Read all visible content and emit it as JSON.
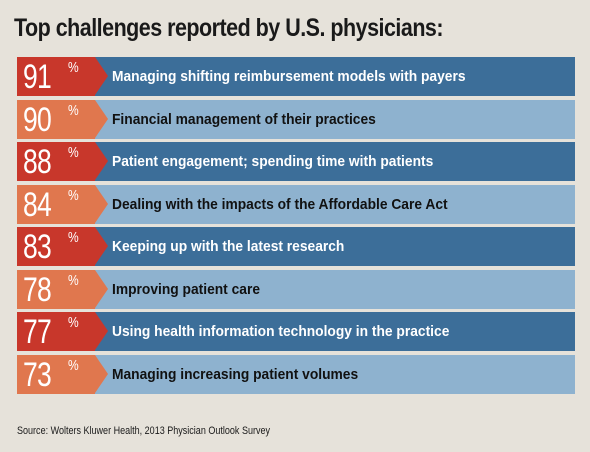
{
  "header": {
    "title": "Top challenges reported by U.S. physicians:"
  },
  "footer": {
    "source": "Source: Wolters Kluwer Health, 2013 Physician Outlook Survey"
  },
  "colors": {
    "odd_pct": "#c8372b",
    "even_pct": "#e0774e",
    "odd_bar": "#3c6e99",
    "even_bar": "#8eb2cf",
    "odd_text": "#ffffff",
    "even_text": "#111111"
  },
  "chart_data": {
    "type": "table",
    "title": "Top challenges reported by U.S. physicians:",
    "unit": "%",
    "rows": [
      {
        "value": 91,
        "label": "Managing shifting reimbursement models with payers"
      },
      {
        "value": 90,
        "label": "Financial management of their practices"
      },
      {
        "value": 88,
        "label": "Patient engagement; spending time with patients"
      },
      {
        "value": 84,
        "label": "Dealing with the impacts of the Affordable Care Act"
      },
      {
        "value": 83,
        "label": "Keeping up with the latest research"
      },
      {
        "value": 78,
        "label": "Improving patient care"
      },
      {
        "value": 77,
        "label": "Using health information technology in the practice"
      },
      {
        "value": 73,
        "label": "Managing increasing patient volumes"
      }
    ]
  }
}
